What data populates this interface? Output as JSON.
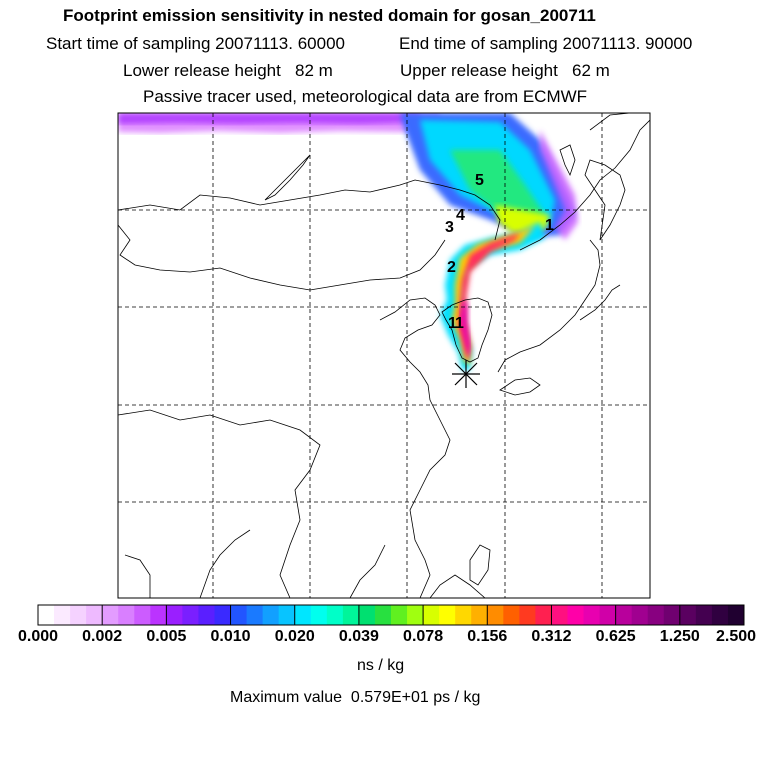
{
  "header": {
    "title": "Footprint emission sensitivity in nested domain for gosan_200711",
    "start_label": "Start time of sampling",
    "start_value": "20071113. 60000",
    "end_label": "End time of sampling",
    "end_value": "20071113. 90000",
    "lower_label": "Lower release height",
    "lower_value": "82 m",
    "upper_label": "Upper release height",
    "upper_value": "62 m",
    "tracer_note": "Passive tracer used, meteorological data are from ECMWF"
  },
  "trajectory_labels": [
    "1",
    "1",
    "2",
    "3",
    "4",
    "5",
    "1"
  ],
  "colorbar": {
    "ticks": [
      "0.000",
      "0.002",
      "0.005",
      "0.010",
      "0.020",
      "0.039",
      "0.078",
      "0.156",
      "0.312",
      "0.625",
      "1.250",
      "2.500"
    ],
    "colors": [
      "#ffffff",
      "#fbeaff",
      "#f5d2ff",
      "#eebaff",
      "#e39cff",
      "#d97fff",
      "#cc5cff",
      "#bb33ff",
      "#9a1fff",
      "#7a1fff",
      "#5a1fff",
      "#3a2aff",
      "#2255ff",
      "#1a7aff",
      "#12a0ff",
      "#08c4ff",
      "#00e6ff",
      "#00ffee",
      "#00ffc8",
      "#00f59a",
      "#00e070",
      "#28e040",
      "#60f020",
      "#a0ff10",
      "#d8ff00",
      "#ffff00",
      "#ffd800",
      "#ffb000",
      "#ff8c00",
      "#ff6000",
      "#ff3a20",
      "#ff2050",
      "#ff1080",
      "#ff00a8",
      "#e800b0",
      "#d000a8",
      "#b8009c",
      "#a00090",
      "#880080",
      "#700070",
      "#5a0060",
      "#440050",
      "#300040",
      "#200030"
    ],
    "unit": "ns / kg"
  },
  "max_label": "Maximum value",
  "max_value": "0.579E+01 ps / kg",
  "receptor_marker": "asterisk-marker"
}
